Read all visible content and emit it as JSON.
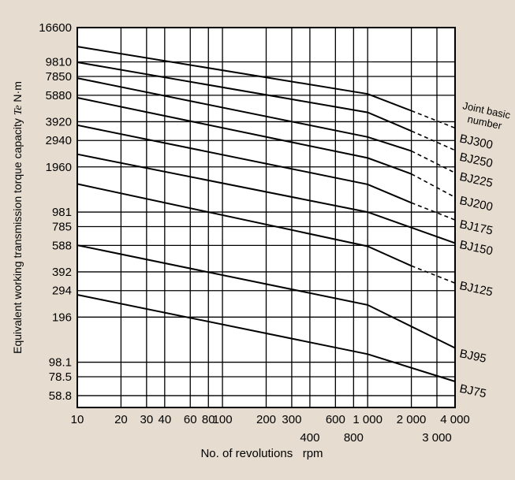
{
  "chart_data": {
    "type": "line",
    "xlabel": "No. of revolutions   rpm",
    "ylabel": "Equivalent working transmission torque capacity",
    "ylabel_symbol": "Te",
    "ylabel_unit": "N·m",
    "x_scale": "log",
    "y_scale": "log",
    "xlim": [
      10,
      4000
    ],
    "ylim": [
      49,
      16600
    ],
    "grid": true,
    "x_ticks": [
      10,
      20,
      30,
      40,
      60,
      80,
      100,
      200,
      300,
      400,
      600,
      800,
      1000,
      2000,
      3000,
      4000
    ],
    "x_tick_labels_top": [
      {
        "v": 10,
        "t": "10"
      },
      {
        "v": 20,
        "t": "20"
      },
      {
        "v": 30,
        "t": "30"
      },
      {
        "v": 40,
        "t": "40"
      },
      {
        "v": 60,
        "t": "60"
      },
      {
        "v": 80,
        "t": "80"
      },
      {
        "v": 100,
        "t": "100"
      },
      {
        "v": 200,
        "t": "200"
      },
      {
        "v": 300,
        "t": "300"
      },
      {
        "v": 600,
        "t": "600"
      },
      {
        "v": 1000,
        "t": "1 000"
      },
      {
        "v": 2000,
        "t": "2 000"
      },
      {
        "v": 4000,
        "t": "4 000"
      }
    ],
    "x_tick_labels_bottom": [
      {
        "v": 400,
        "t": "400"
      },
      {
        "v": 800,
        "t": "800"
      },
      {
        "v": 3000,
        "t": "3 000"
      }
    ],
    "y_ticks": [
      58.8,
      78.5,
      98.1,
      196,
      294,
      392,
      588,
      785,
      981,
      1960,
      2940,
      3920,
      5880,
      7850,
      9810,
      16600
    ],
    "y_tick_labels": [
      "58.8",
      "78.5",
      "98.1",
      "196",
      "294",
      "392",
      "588",
      "785",
      "981",
      "1960",
      "2940",
      "3920",
      "5880",
      "7850",
      "9810",
      "16600"
    ],
    "legend_title": [
      "Joint basic",
      "number"
    ],
    "series": [
      {
        "name": "BJ300",
        "solid": [
          [
            10,
            12400
          ],
          [
            1000,
            6000
          ],
          [
            2000,
            4640
          ]
        ],
        "dashed": [
          [
            2000,
            4640
          ],
          [
            4000,
            3560
          ]
        ]
      },
      {
        "name": "BJ250",
        "solid": [
          [
            10,
            9750
          ],
          [
            1000,
            4520
          ],
          [
            2000,
            3400
          ]
        ],
        "dashed": [
          [
            2000,
            3400
          ],
          [
            4000,
            2530
          ]
        ]
      },
      {
        "name": "BJ225",
        "solid": [
          [
            10,
            7650
          ],
          [
            1000,
            3100
          ],
          [
            2000,
            2500
          ]
        ],
        "dashed": [
          [
            2000,
            2500
          ],
          [
            4000,
            1790
          ]
        ]
      },
      {
        "name": "BJ200",
        "solid": [
          [
            10,
            5660
          ],
          [
            1000,
            2250
          ],
          [
            2000,
            1760
          ]
        ],
        "dashed": [
          [
            2000,
            1760
          ],
          [
            4000,
            1230
          ]
        ]
      },
      {
        "name": "BJ175",
        "solid": [
          [
            10,
            3720
          ],
          [
            1000,
            1500
          ],
          [
            2000,
            1130
          ]
        ],
        "dashed": [
          [
            2000,
            1130
          ],
          [
            4000,
            870
          ]
        ]
      },
      {
        "name": "BJ150",
        "solid": [
          [
            10,
            2380
          ],
          [
            1000,
            980
          ],
          [
            4000,
            610
          ]
        ],
        "dashed": []
      },
      {
        "name": "BJ125",
        "solid": [
          [
            10,
            1510
          ],
          [
            1000,
            580
          ],
          [
            2000,
            430
          ]
        ],
        "dashed": [
          [
            2000,
            430
          ],
          [
            4000,
            330
          ]
        ]
      },
      {
        "name": "BJ95",
        "solid": [
          [
            10,
            590
          ],
          [
            1000,
            236
          ],
          [
            4000,
            122
          ]
        ],
        "dashed": []
      },
      {
        "name": "BJ75",
        "solid": [
          [
            10,
            276
          ],
          [
            1000,
            111
          ],
          [
            4000,
            73
          ]
        ],
        "dashed": []
      }
    ],
    "series_label_y": [
      {
        "name": "BJ300",
        "y": 3050
      },
      {
        "name": "BJ250",
        "y": 2300
      },
      {
        "name": "BJ225",
        "y": 1700
      },
      {
        "name": "BJ200",
        "y": 1180
      },
      {
        "name": "BJ175",
        "y": 820
      },
      {
        "name": "BJ150",
        "y": 600
      },
      {
        "name": "BJ125",
        "y": 320
      },
      {
        "name": "BJ95",
        "y": 113
      },
      {
        "name": "BJ75",
        "y": 66
      }
    ]
  }
}
